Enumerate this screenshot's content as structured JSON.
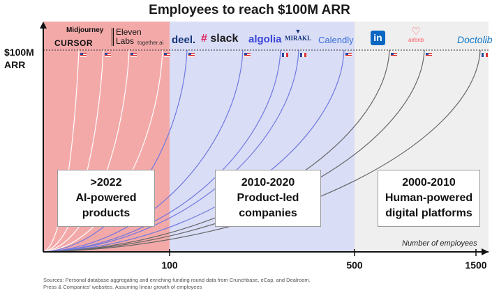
{
  "chart_data": {
    "type": "line",
    "title": "Employees to reach $100M ARR",
    "ylabel_line1": "$100M",
    "ylabel_line2": "ARR",
    "xlabel": "Number of employees",
    "x_ticks": [
      100,
      500,
      1500
    ],
    "eras": [
      {
        "label_line1": ">2022",
        "label_line2": "AI-powered",
        "label_line3": "products",
        "color": "#f4a9a9"
      },
      {
        "label_line1": "2010-2020",
        "label_line2": "Product-led",
        "label_line3": "companies",
        "color": "#d9ddf6"
      },
      {
        "label_line1": "2000-2010",
        "label_line2": "Human-powered",
        "label_line3": "digital platforms",
        "color": "#efefef"
      }
    ],
    "series": [
      {
        "name": "Midjourney",
        "era": 0,
        "flag": "US"
      },
      {
        "name": "CURSOR",
        "era": 0,
        "flag": "US"
      },
      {
        "name": "ElevenLabs",
        "era": 0,
        "flag": "US"
      },
      {
        "name": "together.ai",
        "era": 0,
        "flag": "US"
      },
      {
        "name": "deel.",
        "era": 1,
        "flag": "US"
      },
      {
        "name": "slack",
        "era": 1,
        "flag": "US"
      },
      {
        "name": "algolia",
        "era": 1,
        "flag": "FR"
      },
      {
        "name": "MIRAKL",
        "era": 1,
        "flag": "FR"
      },
      {
        "name": "Calendly",
        "era": 1,
        "flag": "US"
      },
      {
        "name": "in",
        "era": 2,
        "flag": "US"
      },
      {
        "name": "airbnb",
        "era": 2,
        "flag": "US"
      },
      {
        "name": "Doctolib",
        "era": 2,
        "flag": "FR"
      }
    ],
    "source_line1": "Sources: Personal database aggregating and enriching funding round data from Crunchbase, eCap, and Dealroom.",
    "source_line2": "Press & Companies' websites. Assuming linear growth of employees"
  },
  "logos": {
    "midjourney": "Midjourney",
    "cursor": "CURSOR",
    "eleven_1": "Eleven",
    "eleven_2": "Labs",
    "together": "together.ai",
    "deel": "deel.",
    "slack": "slack",
    "algolia": "algolia",
    "mirakl": "MIRAKL",
    "calendly": "Calendly",
    "linkedin": "in",
    "airbnb": "airbnb",
    "doctolib": "Doctolib"
  },
  "colors": {
    "ai_line": "#ffffff",
    "product_line": "#6f78e0",
    "human_line": "#666666",
    "slack_hash": "#e01e5a",
    "algolia": "#3a46d8",
    "linkedin": "#0a66c2",
    "airbnb": "#ff5a5f",
    "doctolib": "#107aca"
  }
}
